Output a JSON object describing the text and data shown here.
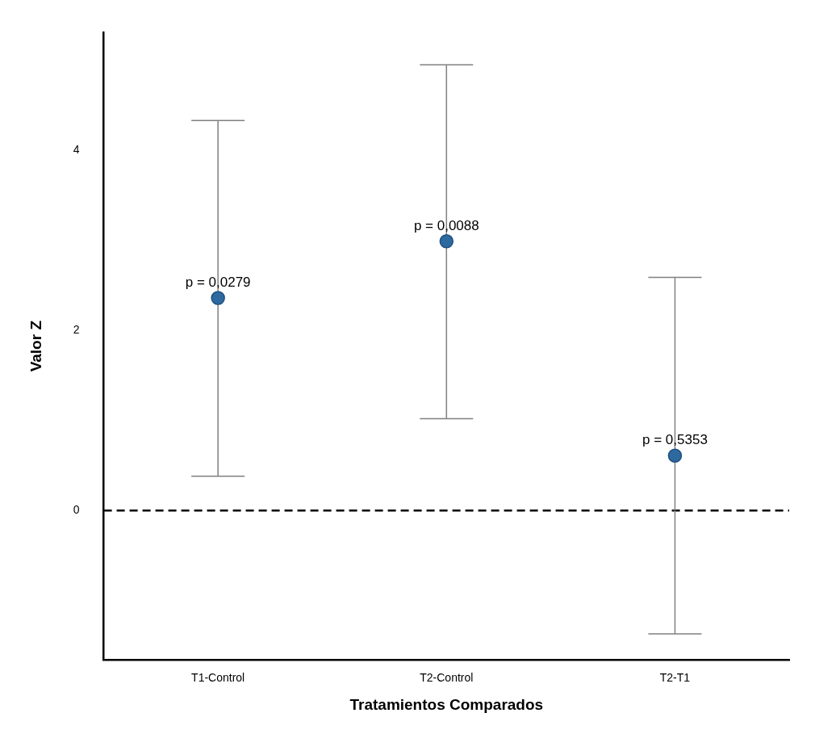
{
  "chart_data": {
    "type": "scatter",
    "xlabel": "Tratamientos Comparados",
    "ylabel": "Valor Z",
    "categories": [
      "T1-Control",
      "T2-Control",
      "T2-T1"
    ],
    "values": [
      2.36,
      2.99,
      0.61
    ],
    "errors": [
      [
        0.38,
        4.33
      ],
      [
        1.02,
        4.95
      ],
      [
        -1.37,
        2.59
      ]
    ],
    "annotations": [
      {
        "text": "p = 0,0279",
        "x": "T1-Control",
        "y": 2.36
      },
      {
        "text": "p = 0,0088",
        "x": "T2-Control",
        "y": 2.99
      },
      {
        "text": "p = 0,5353",
        "x": "T2-T1",
        "y": 0.61
      }
    ],
    "color": "#2e6aa0",
    "ylim": [
      -1.66,
      5.31
    ],
    "yticks": [
      0,
      2,
      4
    ],
    "ref_lines": [
      {
        "axis": "y",
        "value": 0,
        "line_style": "dashed",
        "color": "#000000"
      }
    ],
    "grid": false,
    "legend": false,
    "marker": "circle"
  }
}
